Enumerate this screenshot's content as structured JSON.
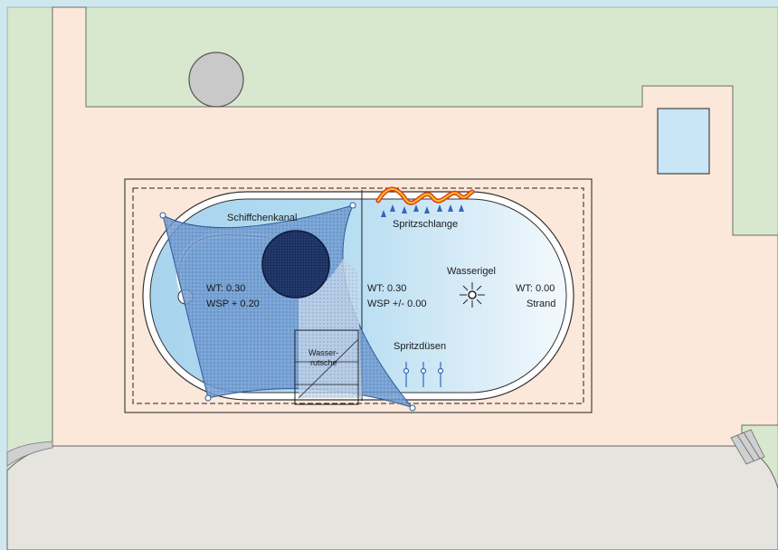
{
  "plan": {
    "labels": {
      "schiffchenkanal": "Schiffchenkanal",
      "spritzschlange": "Spritzschlange",
      "wasserigel": "Wasserigel",
      "spritzduesen": "Spritzdüsen",
      "wasserrutsche_line1": "Wasser-",
      "wasserrutsche_line2": "rutsche",
      "wt_left": "WT: 0.30",
      "wsp_left": "WSP + 0.20",
      "wt_center": "WT: 0.30",
      "wsp_center": "WSP +/- 0.00",
      "wt_right": "WT: 0.00",
      "strand": "Strand"
    },
    "colors": {
      "frame": "#cfe8ef",
      "lawn": "#d8e8cf",
      "paving": "#fbe8da",
      "plaza": "#e6e4df",
      "water_deep": "#a9d4ee",
      "water_shallow": "#e9f4fb",
      "shade_sail": "#5a8cc9",
      "fountain_disc": "#1c2f5e",
      "tree": "#c9c9c9"
    }
  }
}
